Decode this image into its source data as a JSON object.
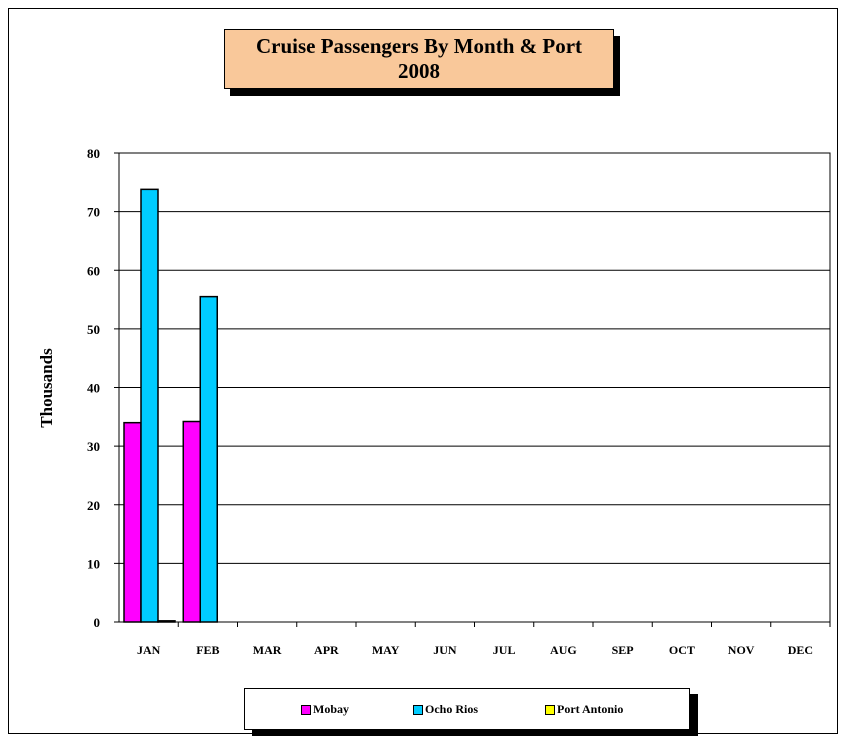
{
  "chart_data": {
    "type": "bar",
    "title": "Cruise Passengers By Month & Port",
    "subtitle": "2008",
    "ylabel": "Thousands",
    "xlabel": "",
    "ylim": [
      0,
      80
    ],
    "yticks": [
      "0",
      "10",
      "20",
      "30",
      "40",
      "50",
      "60",
      "70",
      "80"
    ],
    "grid": true,
    "legend": "bottom",
    "categories": [
      "JAN",
      "FEB",
      "MAR",
      "APR",
      "MAY",
      "JUN",
      "JUL",
      "AUG",
      "SEP",
      "OCT",
      "NOV",
      "DEC"
    ],
    "series": [
      {
        "name": "Mobay",
        "color": "#ff00ff",
        "values": [
          34,
          34.2,
          null,
          null,
          null,
          null,
          null,
          null,
          null,
          null,
          null,
          null
        ]
      },
      {
        "name": "Ocho Rios",
        "color": "#00ccff",
        "values": [
          73.8,
          55.5,
          null,
          null,
          null,
          null,
          null,
          null,
          null,
          null,
          null,
          null
        ]
      },
      {
        "name": "Port Antonio",
        "color": "#ffff00",
        "values": [
          0.2,
          null,
          null,
          null,
          null,
          null,
          null,
          null,
          null,
          null,
          null,
          null
        ]
      }
    ]
  }
}
